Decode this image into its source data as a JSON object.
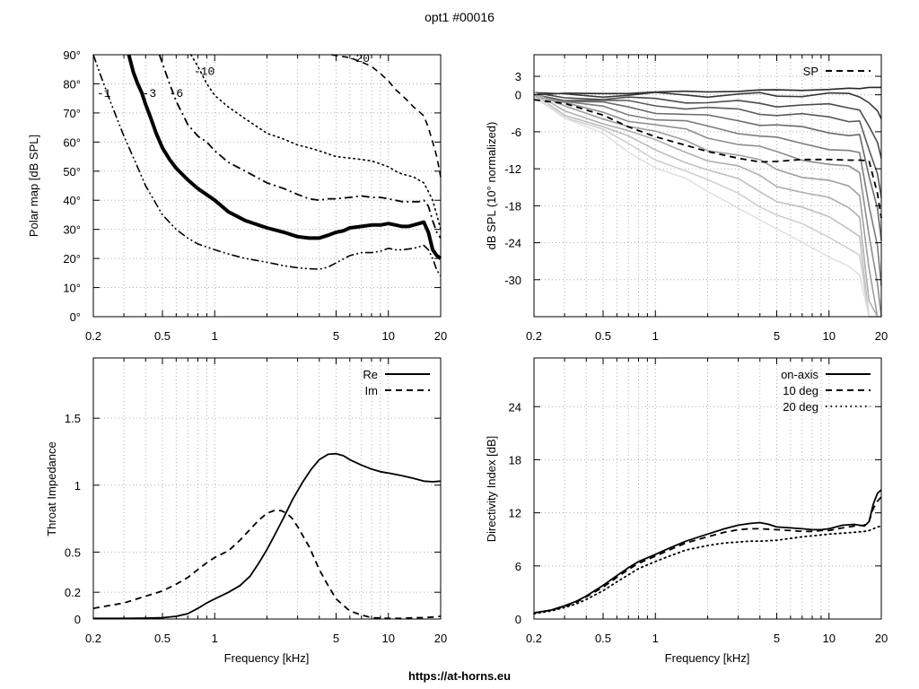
{
  "page": {
    "title": "opt1 #00016",
    "footer": "https://at-horns.eu"
  },
  "chart_data": [
    {
      "type": "contour",
      "id": "polar",
      "title": "",
      "xlabel": "",
      "ylabel": "Polar map [dB SPL]",
      "xscale": "log",
      "xlim": [
        0.2,
        20
      ],
      "ylim": [
        0,
        90
      ],
      "xticks": [
        0.2,
        0.5,
        1,
        5,
        10,
        20
      ],
      "xticklabels": [
        "0.2",
        "0.5",
        "1",
        "5",
        "10",
        "20"
      ],
      "yticks": [
        0,
        10,
        20,
        30,
        40,
        50,
        60,
        70,
        80,
        90
      ],
      "yticklabels": [
        "0°",
        "10°",
        "20°",
        "30°",
        "40°",
        "50°",
        "60°",
        "70°",
        "80°",
        "90°"
      ],
      "grid": true,
      "series": [
        {
          "name": "-1",
          "label_at": [
            0.23,
            75.5
          ],
          "style": "dashdotdot",
          "width": 1.6,
          "x": [
            0.2,
            0.22,
            0.25,
            0.3,
            0.35,
            0.4,
            0.5,
            0.6,
            0.7,
            0.8,
            1.0,
            1.2,
            1.5,
            2.0,
            2.5,
            3.0,
            3.5,
            4.0,
            4.5,
            5.0,
            6.0,
            7.0,
            8.0,
            9.0,
            10.0,
            11.0,
            12.0,
            14.0,
            16.0,
            17.0,
            18.0,
            19.0,
            20.0
          ],
          "y": [
            90,
            83,
            74,
            62,
            53,
            45,
            35,
            30,
            27,
            25,
            23,
            21.5,
            20,
            18.7,
            17.5,
            16.8,
            16.5,
            16.3,
            17,
            18.5,
            21,
            22,
            22,
            22.5,
            23.5,
            23,
            23,
            23.5,
            24.5,
            23,
            20,
            16,
            14
          ]
        },
        {
          "name": "-3",
          "label_at": [
            0.42,
            75.5
          ],
          "style": "solid",
          "width": 4,
          "x": [
            0.32,
            0.34,
            0.36,
            0.38,
            0.4,
            0.43,
            0.46,
            0.5,
            0.55,
            0.6,
            0.7,
            0.8,
            1.0,
            1.2,
            1.5,
            2.0,
            2.5,
            3.0,
            3.5,
            4.0,
            4.5,
            5.0,
            5.5,
            6.0,
            7.0,
            8.0,
            9.0,
            10.0,
            11.0,
            12.0,
            13.0,
            14.0,
            15.0,
            16.0,
            17.0,
            18.0,
            19.0,
            20.0
          ],
          "y": [
            90,
            84,
            80,
            77,
            73,
            68,
            63,
            58,
            54,
            51,
            47,
            44,
            40,
            36,
            33,
            30.5,
            29,
            27.5,
            27,
            27,
            28,
            29,
            29.5,
            30.5,
            31,
            31.5,
            31.5,
            32,
            31.5,
            31,
            31,
            31.5,
            32,
            32.5,
            29,
            23,
            21,
            20
          ]
        },
        {
          "name": "-6",
          "label_at": [
            0.6,
            75.5
          ],
          "style": "dashdot",
          "width": 1.8,
          "x": [
            0.48,
            0.5,
            0.55,
            0.6,
            0.7,
            0.8,
            0.9,
            1.0,
            1.2,
            1.5,
            2.0,
            2.5,
            3.0,
            3.5,
            4.0,
            4.5,
            5.0,
            6.0,
            7.0,
            8.0,
            9.0,
            10.0,
            11.0,
            12.0,
            13.0,
            14.0,
            15.0,
            16.0,
            17.0,
            18.0,
            19.0,
            20.0
          ],
          "y": [
            90,
            87,
            80,
            74,
            66,
            62,
            60,
            57,
            53,
            50,
            46,
            44,
            42,
            40.5,
            40,
            40.5,
            40.5,
            41,
            41.5,
            41,
            41,
            40.5,
            40,
            39.5,
            39.5,
            39.5,
            39.5,
            40,
            38,
            33,
            29,
            27
          ]
        },
        {
          "name": "-10",
          "label_at": [
            0.87,
            83
          ],
          "style": "dotted",
          "width": 1.6,
          "x": [
            0.73,
            0.8,
            0.9,
            1.0,
            1.2,
            1.5,
            2.0,
            2.5,
            3.0,
            3.5,
            4.0,
            5.0,
            6.0,
            7.0,
            8.0,
            9.0,
            10.0,
            11.0,
            12.0,
            14.0,
            16.0,
            17.0,
            18.0,
            19.0,
            20.0
          ],
          "y": [
            90,
            86,
            80,
            76,
            72,
            68,
            63,
            61,
            59,
            58,
            57,
            55,
            54.5,
            54,
            53.5,
            52.5,
            51.5,
            50,
            49,
            48,
            46,
            43,
            40,
            35,
            30
          ]
        },
        {
          "name": "-20",
          "label_at": [
            6.8,
            87.5
          ],
          "style": "dashed",
          "width": 1.6,
          "x": [
            4.7,
            5.0,
            6.0,
            7.0,
            8.0,
            9.0,
            10.0,
            11.0,
            12.0,
            13.0,
            14.0,
            15.0,
            16.0,
            17.0,
            18.0,
            19.0,
            20.0
          ],
          "y": [
            90,
            89.7,
            89,
            87.5,
            86,
            83.5,
            81,
            78,
            76,
            74,
            72,
            70.5,
            69,
            65,
            60,
            55,
            48
          ]
        }
      ]
    },
    {
      "type": "line",
      "id": "spl",
      "title": "",
      "xlabel": "",
      "ylabel": "dB SPL (10° normalized)",
      "xscale": "log",
      "xlim": [
        0.2,
        20
      ],
      "ylim": [
        -36,
        6.5
      ],
      "xticks": [
        0.2,
        0.5,
        1,
        5,
        10,
        20
      ],
      "xticklabels": [
        "0.2",
        "0.5",
        "1",
        "5",
        "10",
        "20"
      ],
      "yticks": [
        3,
        0,
        -6,
        -12,
        -18,
        -24,
        -30
      ],
      "yticklabels": [
        "3",
        "0",
        "-6",
        "-12",
        "-18",
        "-24",
        "-30"
      ],
      "grid": true,
      "legend": {
        "position": "top-right",
        "entries": [
          "SP"
        ]
      },
      "x": [
        0.2,
        0.3,
        0.5,
        0.7,
        1.0,
        1.5,
        2.0,
        3.0,
        4.0,
        5.0,
        7.0,
        10.0,
        13.0,
        15.0,
        17.0,
        19.0,
        20.0
      ],
      "fan_end": [
        1.2,
        0,
        -2.5,
        -5,
        -8,
        -11.5,
        -15,
        -19,
        -23,
        -27,
        -31,
        -35
      ],
      "series": [
        {
          "name": "SP",
          "style": "dashed",
          "values": [
            -0.8,
            -1.4,
            -3.3,
            -5.2,
            -6.8,
            -8.2,
            -9.2,
            -10.3,
            -10.9,
            -10.8,
            -10.5,
            -10.5,
            -10.6,
            -10.6,
            -10.7,
            -16,
            -20
          ]
        }
      ]
    },
    {
      "type": "line",
      "id": "impedance",
      "title": "",
      "xlabel": "Frequency [kHz]",
      "ylabel": "Throat Impedance",
      "xscale": "log",
      "xlim": [
        0.2,
        20
      ],
      "ylim": [
        0,
        1.95
      ],
      "xticks": [
        0.2,
        0.5,
        1,
        5,
        10,
        20
      ],
      "xticklabels": [
        "0.2",
        "0.5",
        "1",
        "5",
        "10",
        "20"
      ],
      "yticks": [
        0,
        0.2,
        0.5,
        1,
        1.5
      ],
      "yticklabels": [
        "0",
        "0.2",
        "0.5",
        "1",
        "1.5"
      ],
      "grid": true,
      "legend": {
        "position": "top-right",
        "entries": [
          "Re",
          "Im"
        ]
      },
      "series": [
        {
          "name": "Re",
          "style": "solid",
          "x": [
            0.2,
            0.3,
            0.4,
            0.5,
            0.6,
            0.7,
            0.8,
            0.9,
            1.0,
            1.2,
            1.4,
            1.6,
            1.8,
            2.0,
            2.2,
            2.5,
            2.8,
            3.2,
            3.6,
            4.0,
            4.5,
            5.0,
            5.5,
            6.0,
            7.0,
            8.0,
            9.0,
            10.0,
            12.0,
            14.0,
            16.0,
            18.0,
            20.0
          ],
          "y": [
            0.005,
            0.005,
            0.007,
            0.01,
            0.02,
            0.04,
            0.08,
            0.12,
            0.15,
            0.2,
            0.25,
            0.32,
            0.42,
            0.52,
            0.62,
            0.76,
            0.89,
            1.02,
            1.12,
            1.19,
            1.23,
            1.235,
            1.22,
            1.19,
            1.15,
            1.12,
            1.1,
            1.09,
            1.07,
            1.05,
            1.03,
            1.025,
            1.03
          ]
        },
        {
          "name": "Im",
          "style": "dashed",
          "x": [
            0.2,
            0.3,
            0.4,
            0.5,
            0.6,
            0.7,
            0.8,
            0.9,
            1.0,
            1.2,
            1.4,
            1.6,
            1.8,
            2.0,
            2.2,
            2.4,
            2.6,
            2.8,
            3.0,
            3.5,
            4.0,
            4.5,
            5.0,
            6.0,
            7.0,
            8.0,
            10.0,
            12.0,
            14.0,
            16.0,
            18.0,
            20.0
          ],
          "y": [
            0.08,
            0.12,
            0.17,
            0.21,
            0.26,
            0.31,
            0.37,
            0.42,
            0.46,
            0.51,
            0.59,
            0.67,
            0.74,
            0.79,
            0.81,
            0.81,
            0.79,
            0.75,
            0.69,
            0.54,
            0.37,
            0.25,
            0.15,
            0.06,
            0.03,
            0.01,
            0.005,
            0.005,
            0.01,
            0.01,
            0.015,
            0.02
          ]
        }
      ]
    },
    {
      "type": "line",
      "id": "di",
      "title": "",
      "xlabel": "Frequency [kHz]",
      "ylabel": "Directivity Index [dB]",
      "xscale": "log",
      "xlim": [
        0.2,
        20
      ],
      "ylim": [
        0,
        29.5
      ],
      "xticks": [
        0.2,
        0.5,
        1,
        5,
        10,
        20
      ],
      "xticklabels": [
        "0.2",
        "0.5",
        "1",
        "5",
        "10",
        "20"
      ],
      "yticks": [
        0,
        6,
        12,
        18,
        24
      ],
      "yticklabels": [
        "0",
        "6",
        "12",
        "18",
        "24"
      ],
      "grid": true,
      "legend": {
        "position": "top-right",
        "entries": [
          "on-axis",
          "10 deg",
          "20 deg"
        ]
      },
      "series": [
        {
          "name": "on-axis",
          "style": "solid",
          "x": [
            0.2,
            0.25,
            0.3,
            0.35,
            0.4,
            0.5,
            0.6,
            0.7,
            0.8,
            1.0,
            1.2,
            1.5,
            2.0,
            2.5,
            3.0,
            3.5,
            4.0,
            4.5,
            5.0,
            6.0,
            7.0,
            8.0,
            9.0,
            10.0,
            12.0,
            14.0,
            16.0,
            17.0,
            18.0,
            19.0,
            20.0
          ],
          "y": [
            0.7,
            1.0,
            1.5,
            2.0,
            2.6,
            3.8,
            4.9,
            5.8,
            6.5,
            7.3,
            8.0,
            8.8,
            9.6,
            10.2,
            10.6,
            10.8,
            10.9,
            10.7,
            10.4,
            10.3,
            10.2,
            10.1,
            10.1,
            10.2,
            10.6,
            10.7,
            10.5,
            11.0,
            13.0,
            14.2,
            14.6
          ]
        },
        {
          "name": "10 deg",
          "style": "dashed",
          "x": [
            0.2,
            0.25,
            0.3,
            0.35,
            0.4,
            0.5,
            0.6,
            0.7,
            0.8,
            1.0,
            1.2,
            1.5,
            2.0,
            2.5,
            3.0,
            3.5,
            4.0,
            5.0,
            6.0,
            7.0,
            8.0,
            9.0,
            10.0,
            12.0,
            14.0,
            16.0,
            17.0,
            18.0,
            19.0,
            20.0
          ],
          "y": [
            0.7,
            1.0,
            1.4,
            1.9,
            2.5,
            3.6,
            4.7,
            5.6,
            6.3,
            7.1,
            7.8,
            8.6,
            9.3,
            9.8,
            10.1,
            10.2,
            10.2,
            10.1,
            10.0,
            9.9,
            9.9,
            10.0,
            10.0,
            10.3,
            10.5,
            10.6,
            11.0,
            12.5,
            13.3,
            13.8
          ]
        },
        {
          "name": "20 deg",
          "style": "dotted",
          "x": [
            0.2,
            0.25,
            0.3,
            0.35,
            0.4,
            0.5,
            0.6,
            0.7,
            0.8,
            1.0,
            1.2,
            1.5,
            2.0,
            2.5,
            3.0,
            3.5,
            4.0,
            5.0,
            6.0,
            7.0,
            8.0,
            9.0,
            10.0,
            12.0,
            14.0,
            16.0,
            17.0,
            18.0,
            19.0,
            20.0
          ],
          "y": [
            0.6,
            0.9,
            1.3,
            1.7,
            2.2,
            3.2,
            4.2,
            5.0,
            5.7,
            6.5,
            7.1,
            7.8,
            8.3,
            8.6,
            8.7,
            8.8,
            8.8,
            8.9,
            9.1,
            9.3,
            9.4,
            9.5,
            9.6,
            9.7,
            9.8,
            9.9,
            10.0,
            10.2,
            10.4,
            10.5
          ]
        }
      ]
    }
  ]
}
